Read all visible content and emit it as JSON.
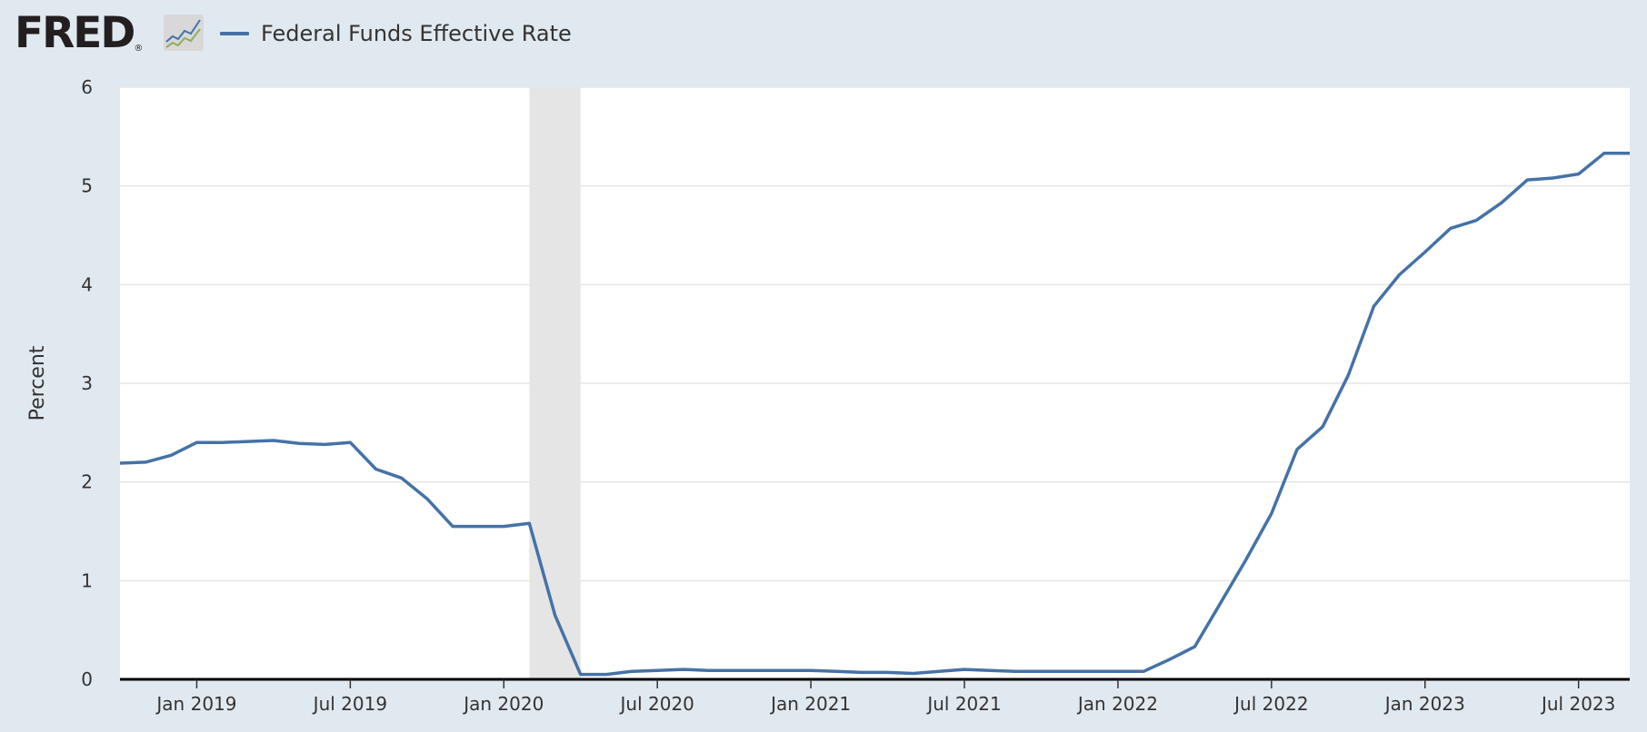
{
  "header": {
    "logo_text": "FRED",
    "logo_registered": "®",
    "legend_label": "Federal Funds Effective Rate"
  },
  "colors": {
    "page_background": "#e1e9f0",
    "plot_background": "#ffffff",
    "series": "#4572a7",
    "recession_band": "#e5e5e5",
    "gridline": "#e6e6e6",
    "text": "#333333"
  },
  "icons": [
    "fred-logo-graph-icon"
  ],
  "chart_data": {
    "type": "line",
    "title": "",
    "xlabel": "",
    "ylabel": "Percent",
    "ylim": [
      0,
      6
    ],
    "yticks": [
      "0",
      "1",
      "2",
      "3",
      "4",
      "5",
      "6"
    ],
    "xlim": [
      "2018-10-01",
      "2023-09-01"
    ],
    "xticks": [
      {
        "date": "2019-01-01",
        "label": "Jan 2019"
      },
      {
        "date": "2019-07-01",
        "label": "Jul 2019"
      },
      {
        "date": "2020-01-01",
        "label": "Jan 2020"
      },
      {
        "date": "2020-07-01",
        "label": "Jul 2020"
      },
      {
        "date": "2021-01-01",
        "label": "Jan 2021"
      },
      {
        "date": "2021-07-01",
        "label": "Jul 2021"
      },
      {
        "date": "2022-01-01",
        "label": "Jan 2022"
      },
      {
        "date": "2022-07-01",
        "label": "Jul 2022"
      },
      {
        "date": "2023-01-01",
        "label": "Jan 2023"
      },
      {
        "date": "2023-07-01",
        "label": "Jul 2023"
      }
    ],
    "grid": true,
    "legend_placement": "top-left",
    "shaded_regions": [
      {
        "label": "recession",
        "start": "2020-02-01",
        "end": "2020-04-01"
      }
    ],
    "series": [
      {
        "name": "Federal Funds Effective Rate",
        "x": [
          "2018-10-01",
          "2018-11-01",
          "2018-12-01",
          "2019-01-01",
          "2019-02-01",
          "2019-03-01",
          "2019-04-01",
          "2019-05-01",
          "2019-06-01",
          "2019-07-01",
          "2019-08-01",
          "2019-09-01",
          "2019-10-01",
          "2019-11-01",
          "2019-12-01",
          "2020-01-01",
          "2020-02-01",
          "2020-03-01",
          "2020-04-01",
          "2020-05-01",
          "2020-06-01",
          "2020-07-01",
          "2020-08-01",
          "2020-09-01",
          "2020-10-01",
          "2020-11-01",
          "2020-12-01",
          "2021-01-01",
          "2021-02-01",
          "2021-03-01",
          "2021-04-01",
          "2021-05-01",
          "2021-06-01",
          "2021-07-01",
          "2021-08-01",
          "2021-09-01",
          "2021-10-01",
          "2021-11-01",
          "2021-12-01",
          "2022-01-01",
          "2022-02-01",
          "2022-03-01",
          "2022-04-01",
          "2022-05-01",
          "2022-06-01",
          "2022-07-01",
          "2022-08-01",
          "2022-09-01",
          "2022-10-01",
          "2022-11-01",
          "2022-12-01",
          "2023-01-01",
          "2023-02-01",
          "2023-03-01",
          "2023-04-01",
          "2023-05-01",
          "2023-06-01",
          "2023-07-01",
          "2023-08-01",
          "2023-09-01"
        ],
        "values": [
          2.19,
          2.2,
          2.27,
          2.4,
          2.4,
          2.41,
          2.42,
          2.39,
          2.38,
          2.4,
          2.13,
          2.04,
          1.83,
          1.55,
          1.55,
          1.55,
          1.58,
          0.65,
          0.05,
          0.05,
          0.08,
          0.09,
          0.1,
          0.09,
          0.09,
          0.09,
          0.09,
          0.09,
          0.08,
          0.07,
          0.07,
          0.06,
          0.08,
          0.1,
          0.09,
          0.08,
          0.08,
          0.08,
          0.08,
          0.08,
          0.08,
          0.2,
          0.33,
          0.77,
          1.21,
          1.68,
          2.33,
          2.56,
          3.08,
          3.78,
          4.1,
          4.33,
          4.57,
          4.65,
          4.83,
          5.06,
          5.08,
          5.12,
          5.33,
          5.33
        ]
      }
    ]
  }
}
